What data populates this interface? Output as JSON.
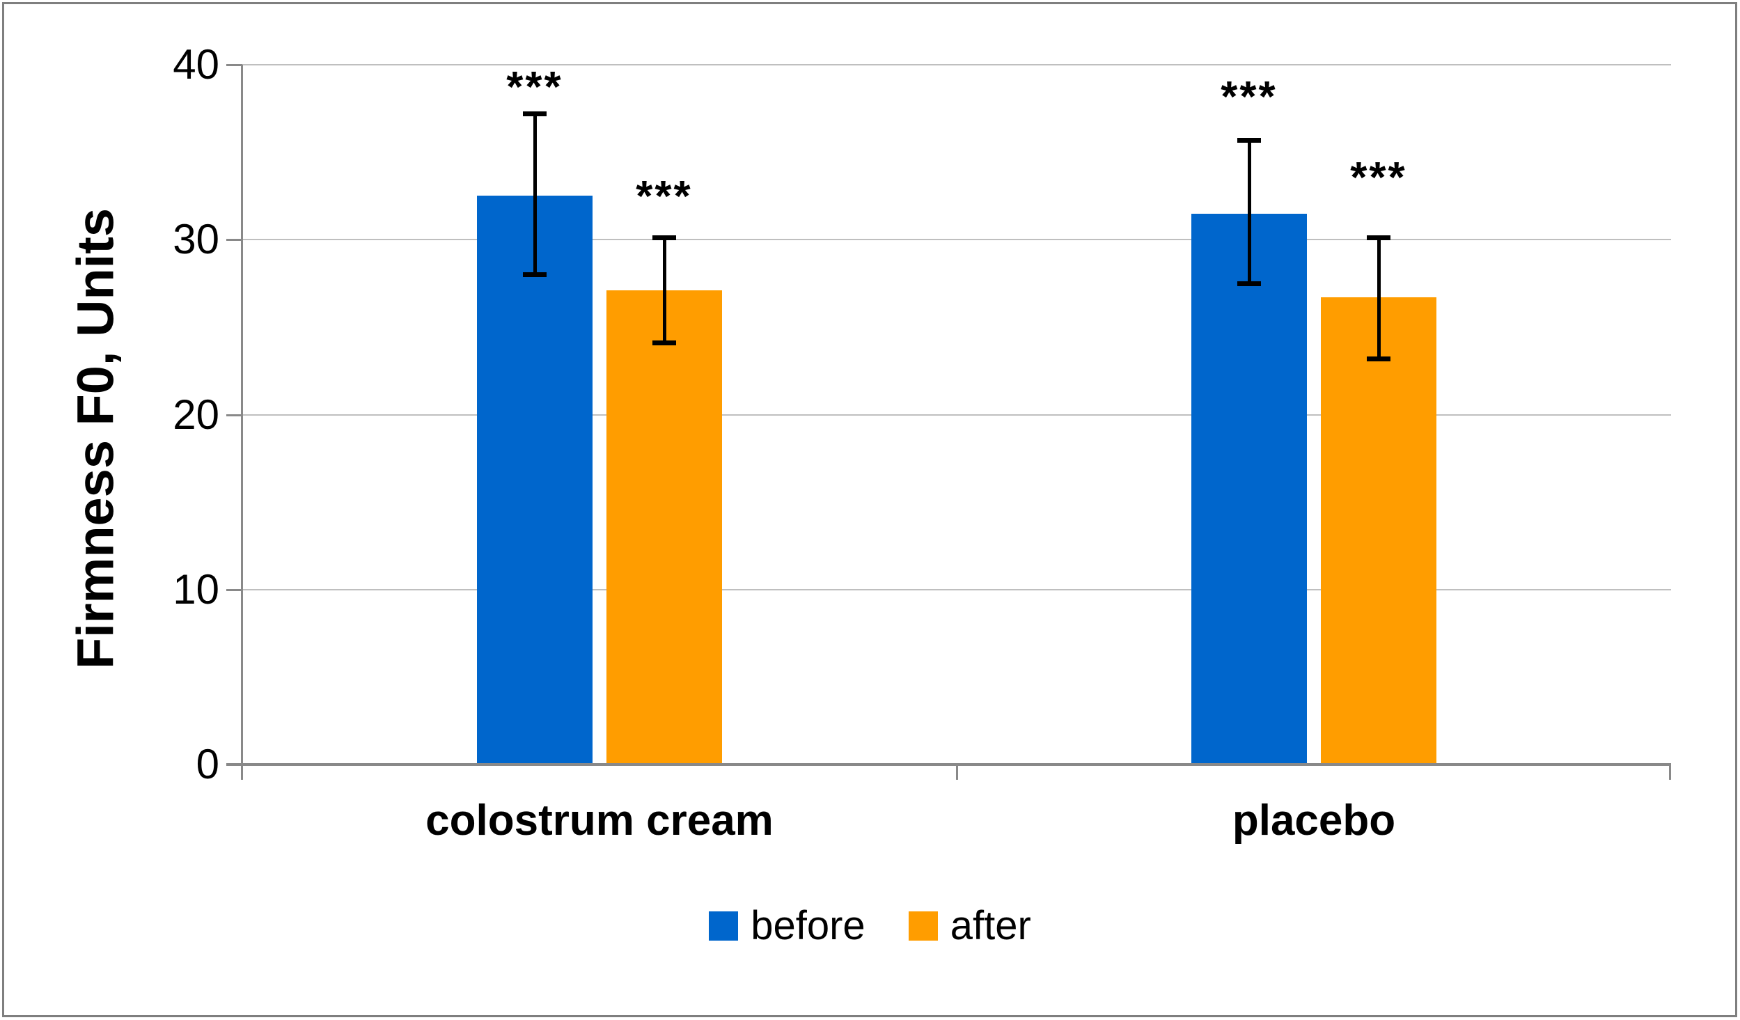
{
  "figure": {
    "background": "#FFFFFF",
    "border_color": "#7F7F7F",
    "gridline_color": "#BFBFBF",
    "axis_color": "#898989"
  },
  "chart_data": {
    "type": "bar",
    "title": "",
    "xlabel": "",
    "ylabel": "Firmness F0, Units",
    "categories": [
      "colostrum cream",
      "placebo"
    ],
    "series": [
      {
        "name": "before",
        "color": "#0066CC",
        "values": [
          32.5,
          31.5
        ],
        "error_low": [
          28.0,
          27.5
        ],
        "error_high": [
          37.2,
          35.7
        ],
        "annotations": [
          "***",
          "***"
        ]
      },
      {
        "name": "after",
        "color": "#FF9D00",
        "values": [
          27.1,
          26.7
        ],
        "error_low": [
          24.1,
          23.2
        ],
        "error_high": [
          30.1,
          30.1
        ],
        "annotations": [
          "***",
          "***"
        ]
      }
    ],
    "ylim": [
      0,
      40
    ],
    "yticks": [
      0,
      10,
      20,
      30,
      40
    ],
    "grid": true,
    "legend_position": "bottom",
    "error_bar_color": "#000000",
    "annotation_color": "#000000"
  }
}
